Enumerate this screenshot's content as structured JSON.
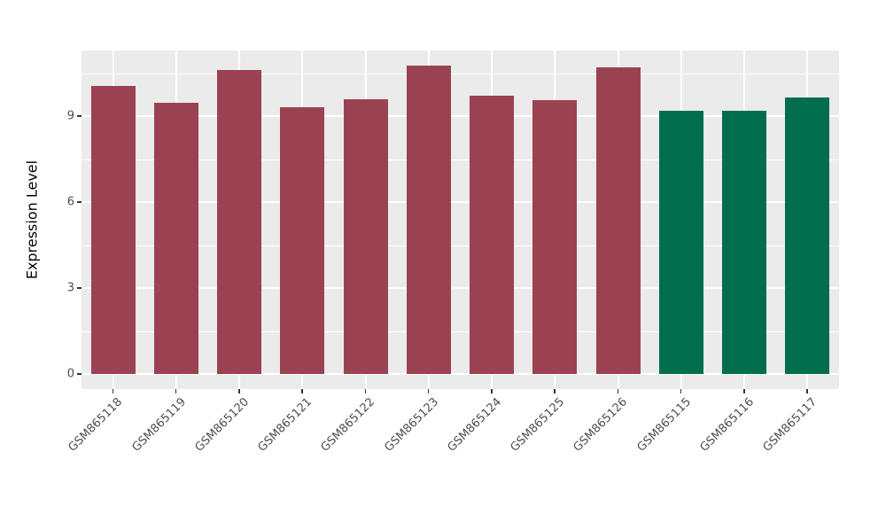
{
  "chart_data": {
    "type": "bar",
    "title": "",
    "xlabel": "",
    "ylabel": "Expression Level",
    "categories": [
      "GSM865118",
      "GSM865119",
      "GSM865120",
      "GSM865121",
      "GSM865122",
      "GSM865123",
      "GSM865124",
      "GSM865125",
      "GSM865126",
      "GSM865115",
      "GSM865116",
      "GSM865117"
    ],
    "values": [
      10.05,
      9.45,
      10.6,
      9.3,
      9.6,
      10.75,
      9.7,
      9.55,
      10.7,
      9.2,
      9.2,
      9.65
    ],
    "bar_colors": [
      "#9B4252",
      "#9B4252",
      "#9B4252",
      "#9B4252",
      "#9B4252",
      "#9B4252",
      "#9B4252",
      "#9B4252",
      "#9B4252",
      "#006E4D",
      "#006E4D",
      "#006E4D"
    ],
    "group_colors": {
      "left_group": "#9B4252",
      "right_group": "#006E4D"
    },
    "yticks": [
      0,
      3,
      6,
      9
    ],
    "yticks_minor": [
      1.5,
      4.5,
      7.5,
      10.5
    ],
    "ylim": [
      -0.54,
      11.31
    ],
    "legend": "none",
    "grid": "on",
    "panel_background": "#EBEBEB",
    "grid_color": "#FFFFFF",
    "tick_label_color": "#4D4D4D",
    "axis_title_color": "#000000",
    "tick_mark_color": "#333333"
  }
}
